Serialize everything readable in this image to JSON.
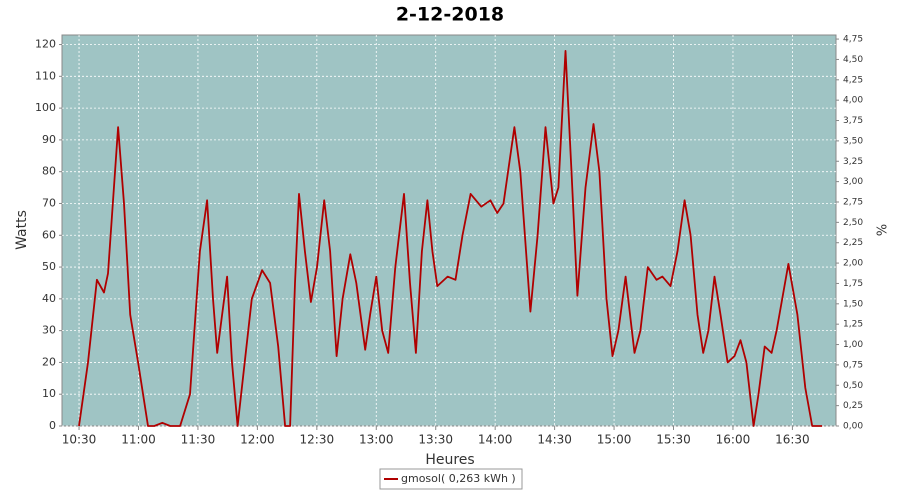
{
  "chart_data": {
    "type": "line",
    "title": "2-12-2018",
    "x_label": "Heures",
    "y_label": "Watts",
    "y2_label": "%",
    "x": [
      630,
      634.5,
      639,
      642.6,
      644.6,
      649.7,
      652.7,
      655.8,
      659.8,
      664.8,
      668,
      672,
      676,
      681,
      686,
      691,
      694.6,
      697.6,
      699.7,
      702.2,
      704.7,
      707.2,
      710,
      713.6,
      717.2,
      722.4,
      726.4,
      730.5,
      734,
      736.5,
      739,
      741,
      744,
      747,
      750.1,
      753.7,
      756.7,
      760,
      763,
      766.9,
      769.9,
      774.4,
      776.9,
      780,
      783,
      786,
      789.6,
      794,
      797,
      800,
      803,
      805.8,
      808.3,
      810.8,
      816,
      820,
      823.5,
      827.6,
      833,
      837.6,
      841,
      844.2,
      849.7,
      852.7,
      857.8,
      861.4,
      865.4,
      869.4,
      871.9,
      875.5,
      878.5,
      881.5,
      885.6,
      889.6,
      892.6,
      896.2,
      899.2,
      902.2,
      905.8,
      910.3,
      913.3,
      917,
      921.4,
      924.4,
      928.5,
      932,
      935.6,
      938.6,
      942.1,
      945,
      947.6,
      950.7,
      953.7,
      957.3,
      960.8,
      963.8,
      966.8,
      970.4,
      972.9,
      976,
      979.5,
      982,
      988,
      992.5,
      996.5,
      1000,
      1005
    ],
    "series": [
      {
        "name": "gmosol( 0,263 kWh )",
        "color": "#b00000",
        "values": [
          0,
          20,
          46,
          42,
          48,
          94,
          70,
          35,
          20,
          0,
          0,
          1,
          0,
          0,
          10,
          55,
          71,
          40,
          23,
          35,
          47,
          20,
          0,
          20,
          40,
          49,
          45,
          25,
          0,
          0,
          45,
          73,
          55,
          39,
          50,
          71,
          55,
          22,
          40,
          54,
          45,
          24,
          35,
          47,
          30,
          23,
          50,
          73,
          45,
          23,
          55,
          71,
          55,
          44,
          47,
          46,
          60,
          73,
          69,
          71,
          67,
          70,
          94,
          80,
          36,
          60,
          94,
          70,
          75,
          118,
          80,
          41,
          75,
          95,
          80,
          40,
          22,
          30,
          47,
          23,
          30,
          50,
          46,
          47,
          44,
          55,
          71,
          60,
          35,
          23,
          30,
          47,
          35,
          20,
          22,
          27,
          20,
          0,
          10,
          25,
          23,
          30,
          51,
          35,
          12,
          0,
          0
        ]
      }
    ],
    "xlim": [
      621.4,
      1012
    ],
    "xticks": [
      {
        "value": 630,
        "label": "10:30"
      },
      {
        "value": 660,
        "label": "11:00"
      },
      {
        "value": 690,
        "label": "11:30"
      },
      {
        "value": 720,
        "label": "12:00"
      },
      {
        "value": 750,
        "label": "12:30"
      },
      {
        "value": 780,
        "label": "13:00"
      },
      {
        "value": 810,
        "label": "13:30"
      },
      {
        "value": 840,
        "label": "14:00"
      },
      {
        "value": 870,
        "label": "14:30"
      },
      {
        "value": 900,
        "label": "15:00"
      },
      {
        "value": 930,
        "label": "15:30"
      },
      {
        "value": 960,
        "label": "16:00"
      },
      {
        "value": 990,
        "label": "16:30"
      }
    ],
    "ylim": [
      0,
      123
    ],
    "yticks": [
      0,
      10,
      20,
      30,
      40,
      50,
      60,
      70,
      80,
      90,
      100,
      110,
      120
    ],
    "y2lim": [
      0,
      4.8
    ],
    "y2ticks": [
      {
        "value": 0,
        "label": "0,00"
      },
      {
        "value": 0.25,
        "label": "0,25"
      },
      {
        "value": 0.5,
        "label": "0,50"
      },
      {
        "value": 0.75,
        "label": "0,75"
      },
      {
        "value": 1,
        "label": "1,00"
      },
      {
        "value": 1.25,
        "label": "1,25"
      },
      {
        "value": 1.5,
        "label": "1,50"
      },
      {
        "value": 1.75,
        "label": "1,75"
      },
      {
        "value": 2,
        "label": "2,00"
      },
      {
        "value": 2.25,
        "label": "2,25"
      },
      {
        "value": 2.5,
        "label": "2,50"
      },
      {
        "value": 2.75,
        "label": "2,75"
      },
      {
        "value": 3,
        "label": "3,00"
      },
      {
        "value": 3.25,
        "label": "3,25"
      },
      {
        "value": 3.5,
        "label": "3,50"
      },
      {
        "value": 3.75,
        "label": "3,75"
      },
      {
        "value": 4,
        "label": "4,00"
      },
      {
        "value": 4.25,
        "label": "4,25"
      },
      {
        "value": 4.5,
        "label": "4,50"
      },
      {
        "value": 4.75,
        "label": "4,75"
      }
    ],
    "grid": true,
    "plot_background": "#9fc4c4",
    "legend": "bottom"
  }
}
